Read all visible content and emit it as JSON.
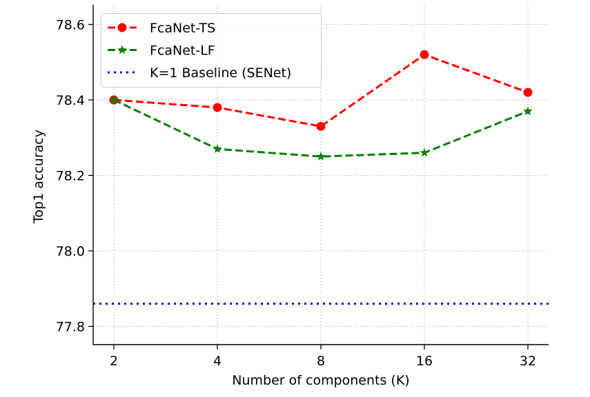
{
  "chart_data": {
    "type": "line",
    "title": "",
    "xlabel": "Number of components (K)",
    "ylabel": "Top1 accuracy",
    "categories": [
      "2",
      "4",
      "8",
      "16",
      "32"
    ],
    "x": [
      2,
      4,
      8,
      16,
      32
    ],
    "x_scale": "log2",
    "series": [
      {
        "name": "FcaNet-TS",
        "color": "#ff0000",
        "marker": "circle",
        "linestyle": "dashed",
        "values": [
          78.4,
          78.38,
          78.33,
          78.52,
          78.42
        ]
      },
      {
        "name": "FcaNet-LF",
        "color": "#008000",
        "marker": "star",
        "linestyle": "dashed",
        "values": [
          78.4,
          78.27,
          78.25,
          78.26,
          78.37
        ]
      },
      {
        "name": "K=1 Baseline (SENet)",
        "color": "#0000ff",
        "marker": "none",
        "linestyle": "dotted",
        "type": "hline",
        "value": 77.86
      }
    ],
    "yticks": [
      "77.8",
      "78.0",
      "78.2",
      "78.4",
      "78.6"
    ],
    "ylim": [
      77.75,
      78.65
    ],
    "grid": true,
    "legend_position": "upper left"
  }
}
